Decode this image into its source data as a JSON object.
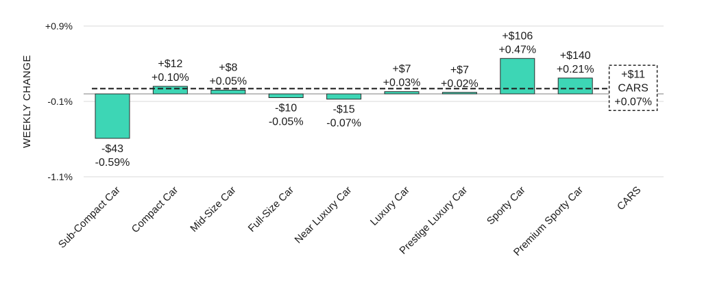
{
  "chart_data": {
    "type": "bar",
    "title": "",
    "xlabel": "",
    "ylabel": "WEEKLY CHANGE",
    "ylim": [
      -1.1,
      0.9
    ],
    "yticks": [
      {
        "value": 0.9,
        "label": "+0.9%"
      },
      {
        "value": -0.1,
        "label": "-0.1%"
      },
      {
        "value": -1.1,
        "label": "-1.1%"
      }
    ],
    "grid": true,
    "legend": "none",
    "colors": {
      "bar": "#3dd6b5",
      "average_line": "#222222"
    },
    "categories": [
      "Sub-Compact Car",
      "Compact Car",
      "Mid-Size Car",
      "Full-Size Car",
      "Near Luxury Car",
      "Luxury Car",
      "Prestige Luxury Car",
      "Sporty Car",
      "Premium Sporty Car",
      "CARS"
    ],
    "values": [
      -0.59,
      0.1,
      0.05,
      -0.05,
      -0.07,
      0.03,
      0.02,
      0.47,
      0.21,
      null
    ],
    "dollar_labels": [
      "-$43",
      "+$12",
      "+$8",
      "-$10",
      "-$15",
      "+$7",
      "+$7",
      "+$106",
      "+$140",
      "+$11"
    ],
    "percent_labels": [
      "-0.59%",
      "+0.10%",
      "+0.05%",
      "-0.05%",
      "-0.07%",
      "+0.03%",
      "+0.02%",
      "+0.47%",
      "+0.21%",
      "+0.07%"
    ],
    "average": {
      "value": 0.07,
      "name": "CARS",
      "dollar_label": "+$11",
      "percent_label": "+0.07%"
    }
  }
}
